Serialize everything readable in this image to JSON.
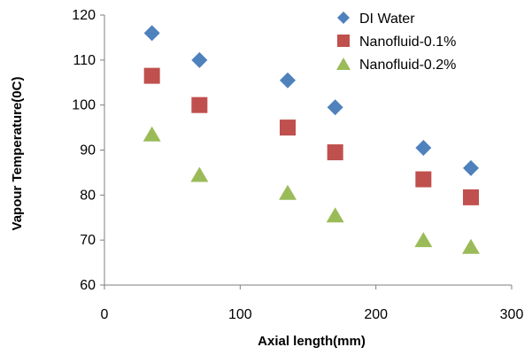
{
  "chart_data": {
    "type": "scatter",
    "title": "",
    "xlabel": "Axial length(mm)",
    "ylabel": "Vapour Temperature(0C)",
    "xlim": [
      0,
      300
    ],
    "ylim": [
      60,
      120
    ],
    "xticks": [
      0,
      100,
      200,
      300
    ],
    "yticks": [
      60,
      70,
      80,
      90,
      100,
      110,
      120
    ],
    "grid": false,
    "legend_position": "top-right",
    "series": [
      {
        "name": "DI Water",
        "marker": "diamond",
        "color": "#4F81BD",
        "x": [
          35,
          70,
          135,
          170,
          235,
          270
        ],
        "y": [
          116,
          110,
          105.5,
          99.5,
          90.5,
          86
        ]
      },
      {
        "name": "Nanofluid-0.1%",
        "marker": "square",
        "color": "#C0504D",
        "x": [
          35,
          70,
          135,
          170,
          235,
          270
        ],
        "y": [
          106.5,
          100,
          95,
          89.5,
          83.5,
          79.5
        ]
      },
      {
        "name": "Nanofluid-0.2%",
        "marker": "triangle",
        "color": "#9BBB59",
        "x": [
          35,
          70,
          135,
          170,
          235,
          270
        ],
        "y": [
          93.5,
          84.5,
          80.5,
          75.5,
          70,
          68.5
        ]
      }
    ]
  }
}
